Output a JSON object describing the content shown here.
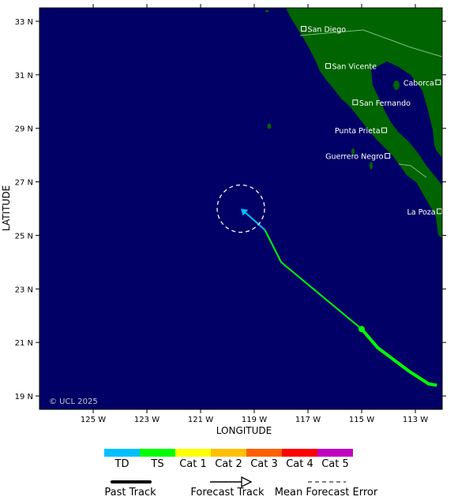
{
  "map": {
    "ocean_color": "#000066",
    "land_color": "#006400",
    "copyright": "© UCL 2025",
    "lat_axis_label": "LATITUDE",
    "lon_axis_label": "LONGITUDE",
    "lat_ticks": [
      "33 N",
      "31 N",
      "29 N",
      "27 N",
      "25 N",
      "23 N",
      "21 N",
      "19 N"
    ],
    "lon_ticks": [
      "125 W",
      "123 W",
      "121 W",
      "119 W",
      "117 W",
      "115 W",
      "113 W"
    ],
    "places": [
      {
        "name": "San Diego",
        "lat": 32.72,
        "lon": -117.16
      },
      {
        "name": "San Vicente",
        "lat": 31.33,
        "lon": -116.25
      },
      {
        "name": "Caborca",
        "lat": 30.72,
        "lon": -112.15
      },
      {
        "name": "San Fernando",
        "lat": 29.97,
        "lon": -115.24
      },
      {
        "name": "Punta Prieta",
        "lat": 28.93,
        "lon": -114.16
      },
      {
        "name": "Guerrero Negro",
        "lat": 27.97,
        "lon": -114.04
      },
      {
        "name": "La Poza",
        "lat": 25.9,
        "lon": -112.1
      }
    ]
  },
  "storm": {
    "past_track": [
      {
        "lat": 19.4,
        "lon": -112.2
      },
      {
        "lat": 19.45,
        "lon": -112.5
      },
      {
        "lat": 19.9,
        "lon": -113.2
      },
      {
        "lat": 20.8,
        "lon": -114.4
      },
      {
        "lat": 21.5,
        "lon": -115.0
      }
    ],
    "forecast_track": [
      {
        "lat": 21.5,
        "lon": -115.0
      },
      {
        "lat": 24.0,
        "lon": -118.0
      },
      {
        "lat": 25.2,
        "lon": -118.6
      },
      {
        "lat": 26.0,
        "lon": -119.5
      }
    ],
    "current_position": {
      "lat": 21.5,
      "lon": -115.0
    },
    "forecast_category": "TD",
    "track_category": "TS",
    "error_circle_center": {
      "lat": 26.0,
      "lon": -119.5
    }
  },
  "legend": {
    "categories": [
      {
        "label": "TD",
        "color": "#00bfff"
      },
      {
        "label": "TS",
        "color": "#00ff00"
      },
      {
        "label": "Cat 1",
        "color": "#ffff00"
      },
      {
        "label": "Cat 2",
        "color": "#ffc000"
      },
      {
        "label": "Cat 3",
        "color": "#ff6000"
      },
      {
        "label": "Cat 4",
        "color": "#ff0000"
      },
      {
        "label": "Cat 5",
        "color": "#c000c0"
      }
    ],
    "past_track_label": "Past Track",
    "forecast_track_label": "Forecast Track",
    "error_label": "Mean Forecast Error"
  }
}
